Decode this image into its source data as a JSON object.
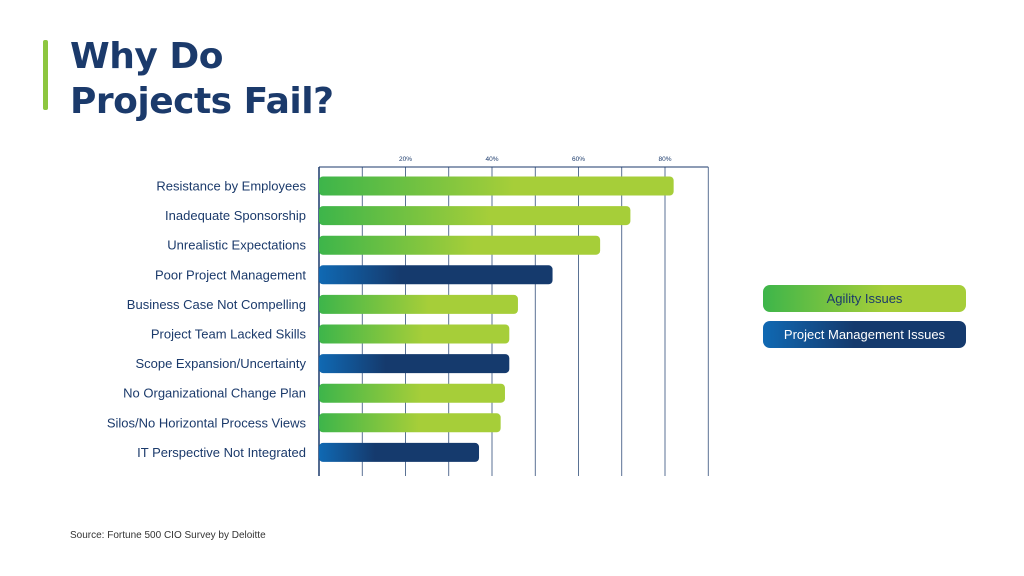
{
  "title": {
    "line1": "Why Do",
    "line2": "Projects Fail?"
  },
  "legend": {
    "agility": "Agility Issues",
    "project_management": "Project Management Issues"
  },
  "source": "Source: Fortune 500 CIO Survey by Deloitte",
  "colors": {
    "title": "#1b3a6b",
    "accent": "#8dc63f",
    "agility_start": "#3db54a",
    "agility_end": "#a6ce39",
    "pm_start": "#1069b3",
    "pm_end": "#153a6d",
    "grid": "#1b3a6b"
  },
  "chart_data": {
    "type": "bar",
    "orientation": "horizontal",
    "x_ticks": [
      "20%",
      "40%",
      "60%",
      "80%"
    ],
    "x_tick_values": [
      20,
      40,
      60,
      80
    ],
    "xlim": [
      0,
      90
    ],
    "grid": true,
    "legend_position": "right",
    "categories": [
      "Resistance by Employees",
      "Inadequate Sponsorship",
      "Unrealistic Expectations",
      "Poor Project Management",
      "Business Case Not Compelling",
      "Project Team Lacked Skills",
      "Scope Expansion/Uncertainty",
      "No Organizational Change Plan",
      "Silos/No Horizontal Process Views",
      "IT Perspective Not Integrated"
    ],
    "values": [
      82,
      72,
      65,
      54,
      46,
      44,
      44,
      43,
      42,
      37
    ],
    "groups": [
      "Agility Issues",
      "Agility Issues",
      "Agility Issues",
      "Project Management Issues",
      "Agility Issues",
      "Agility Issues",
      "Project Management Issues",
      "Agility Issues",
      "Agility Issues",
      "Project Management Issues"
    ]
  }
}
